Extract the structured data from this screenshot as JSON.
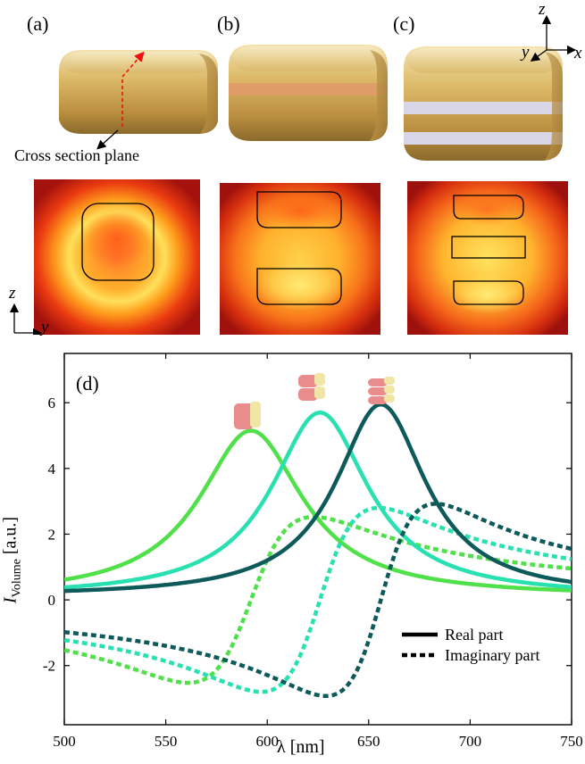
{
  "panels": {
    "a": {
      "label": "(a)",
      "annotation": "Cross section plane"
    },
    "b": {
      "label": "(b)"
    },
    "c": {
      "label": "(c)"
    },
    "d": {
      "label": "(d)"
    }
  },
  "axes_3d": {
    "z": "z",
    "y": "y",
    "x": "x"
  },
  "axes_2d": {
    "z": "z",
    "y": "y"
  },
  "colors": {
    "gold_light": "#e8cf92",
    "gold_mid": "#c9a456",
    "gold_dark": "#8a6a2c",
    "stripe_b": "#e09a6a",
    "stripe_c": "#d8d6e6",
    "field_outer": "#a3120d",
    "field_mid": "#ef3a0f",
    "field_inner": "#ffe05a",
    "series_a": "#4fe04a",
    "series_b": "#29e0b0",
    "series_c": "#0e5a5a",
    "icon_pink": "#e98c8c",
    "icon_cream": "#f2e6a6"
  },
  "chart_data": {
    "type": "line",
    "xlabel": "λ [nm]",
    "ylabel_main": "I",
    "ylabel_sub": "Volume",
    "ylabel_unit": " [a.u.]",
    "xlim": [
      500,
      750
    ],
    "ylim": [
      -3.8,
      7.5
    ],
    "xticks": [
      500,
      550,
      600,
      650,
      700,
      750
    ],
    "yticks": [
      -2,
      0,
      2,
      4,
      6
    ],
    "legend": {
      "position": "lower-right",
      "real": "Real part",
      "imag": "Imaginary part"
    },
    "series": [
      {
        "key": "a",
        "color": "#4fe04a",
        "peak": 592,
        "amp": 5.05,
        "width": 31,
        "offset": 0.1
      },
      {
        "key": "b",
        "color": "#29e0b0",
        "peak": 626,
        "amp": 5.6,
        "width": 29,
        "offset": 0.1
      },
      {
        "key": "c",
        "color": "#0e5a5a",
        "peak": 656,
        "amp": 5.85,
        "width": 27,
        "offset": 0.1
      }
    ]
  }
}
